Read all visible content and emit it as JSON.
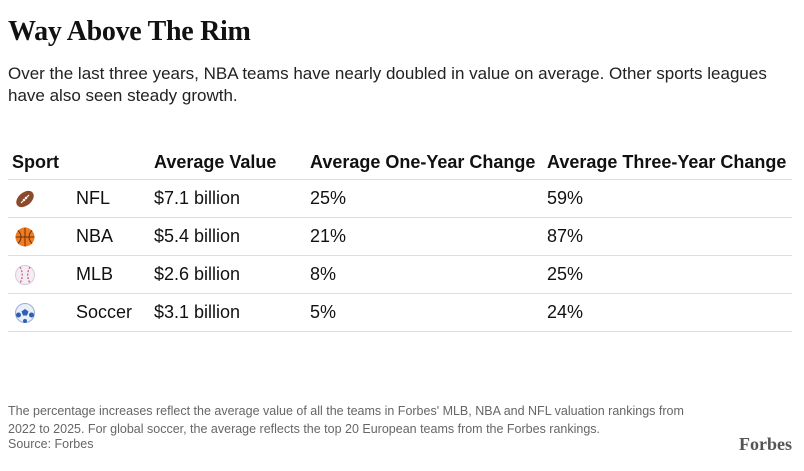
{
  "header": {
    "title": "Way Above The Rim",
    "subtitle": "Over the last three years, NBA teams have nearly doubled in value on average. Other sports leagues have also seen steady growth."
  },
  "table": {
    "columns": [
      "Sport",
      "Average Value",
      "Average One-Year Change",
      "Average Three-Year Change"
    ],
    "rows": [
      [
        "NFL",
        "$7.1 billion",
        "25%",
        "59%"
      ],
      [
        "NBA",
        "$5.4 billion",
        "21%",
        "87%"
      ],
      [
        "MLB",
        "$2.6 billion",
        "8%",
        "25%"
      ],
      [
        "Soccer",
        "$3.1 billion",
        "5%",
        "24%"
      ]
    ]
  },
  "footer": {
    "note": "The percentage increases reflect the average value of all the teams in Forbes' MLB, NBA and NFL valuation rankings from 2022 to 2025. For global soccer, the average reflects the top 20 European teams from the Forbes rankings.",
    "source": "Source: Forbes",
    "logo": "Forbes"
  }
}
